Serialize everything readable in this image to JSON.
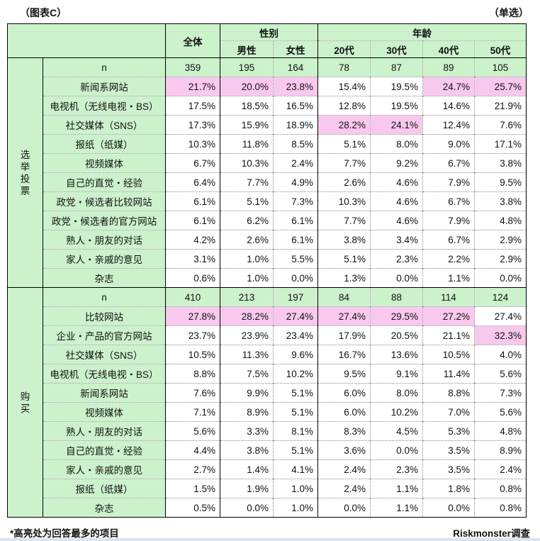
{
  "page": {
    "title_left": "（图表C）",
    "title_right": "（单选）",
    "footnote": "*高亮处为回答最多的项目",
    "source": "Riskmonster调查"
  },
  "colors": {
    "header_green": "#ccf2cc",
    "highlight_pink": "#f9c8ee"
  },
  "table": {
    "header": {
      "overall": "全体",
      "gender_group": "性别",
      "gender_cols": [
        "男性",
        "女性"
      ],
      "age_group": "年龄",
      "age_cols": [
        "20代",
        "30代",
        "40代",
        "50代"
      ]
    },
    "sections": [
      {
        "group": "选举投票",
        "n_label": "n",
        "n_values": [
          "359",
          "195",
          "164",
          "78",
          "87",
          "89",
          "105"
        ],
        "rows": [
          {
            "label": "新闻系网站",
            "values": [
              "21.7%",
              "20.0%",
              "23.8%",
              "15.4%",
              "19.5%",
              "24.7%",
              "25.7%"
            ],
            "highlight": [
              0,
              1,
              2,
              5,
              6
            ]
          },
          {
            "label": "电视机（无线电视・BS）",
            "values": [
              "17.5%",
              "18.5%",
              "16.5%",
              "12.8%",
              "19.5%",
              "14.6%",
              "21.9%"
            ],
            "highlight": []
          },
          {
            "label": "社交媒体（SNS）",
            "values": [
              "17.3%",
              "15.9%",
              "18.9%",
              "28.2%",
              "24.1%",
              "12.4%",
              "7.6%"
            ],
            "highlight": [
              3,
              4
            ]
          },
          {
            "label": "报纸（纸媒）",
            "values": [
              "10.3%",
              "11.8%",
              "8.5%",
              "5.1%",
              "8.0%",
              "9.0%",
              "17.1%"
            ],
            "highlight": []
          },
          {
            "label": "视频媒体",
            "values": [
              "6.7%",
              "10.3%",
              "2.4%",
              "7.7%",
              "9.2%",
              "6.7%",
              "3.8%"
            ],
            "highlight": []
          },
          {
            "label": "自己的直觉・经验",
            "values": [
              "6.4%",
              "7.7%",
              "4.9%",
              "2.6%",
              "4.6%",
              "7.9%",
              "9.5%"
            ],
            "highlight": []
          },
          {
            "label": "政党・候选者比较网站",
            "values": [
              "6.1%",
              "5.1%",
              "7.3%",
              "10.3%",
              "4.6%",
              "6.7%",
              "3.8%"
            ],
            "highlight": []
          },
          {
            "label": "政党・候选者的官方网站",
            "values": [
              "6.1%",
              "6.2%",
              "6.1%",
              "7.7%",
              "4.6%",
              "7.9%",
              "4.8%"
            ],
            "highlight": []
          },
          {
            "label": "熟人・朋友的对话",
            "values": [
              "4.2%",
              "2.6%",
              "6.1%",
              "3.8%",
              "3.4%",
              "6.7%",
              "2.9%"
            ],
            "highlight": []
          },
          {
            "label": "家人・亲戚的意见",
            "values": [
              "3.1%",
              "1.0%",
              "5.5%",
              "5.1%",
              "2.3%",
              "2.2%",
              "2.9%"
            ],
            "highlight": []
          },
          {
            "label": "杂志",
            "values": [
              "0.6%",
              "1.0%",
              "0.0%",
              "1.3%",
              "0.0%",
              "1.1%",
              "0.0%"
            ],
            "highlight": []
          }
        ]
      },
      {
        "group": "购买",
        "n_label": "n",
        "n_values": [
          "410",
          "213",
          "197",
          "84",
          "88",
          "114",
          "124"
        ],
        "rows": [
          {
            "label": "比较网站",
            "values": [
              "27.8%",
              "28.2%",
              "27.4%",
              "27.4%",
              "29.5%",
              "27.2%",
              "27.4%"
            ],
            "highlight": [
              0,
              1,
              2,
              3,
              4,
              5
            ]
          },
          {
            "label": "企业・产品的官方网站",
            "values": [
              "23.7%",
              "23.9%",
              "23.4%",
              "17.9%",
              "20.5%",
              "21.1%",
              "32.3%"
            ],
            "highlight": [
              6
            ]
          },
          {
            "label": "社交媒体（SNS）",
            "values": [
              "10.5%",
              "11.3%",
              "9.6%",
              "16.7%",
              "13.6%",
              "10.5%",
              "4.0%"
            ],
            "highlight": []
          },
          {
            "label": "电视机（无线电视・BS）",
            "values": [
              "8.8%",
              "7.5%",
              "10.2%",
              "9.5%",
              "9.1%",
              "11.4%",
              "5.6%"
            ],
            "highlight": []
          },
          {
            "label": "新闻系网站",
            "values": [
              "7.6%",
              "9.9%",
              "5.1%",
              "6.0%",
              "8.0%",
              "8.8%",
              "7.3%"
            ],
            "highlight": []
          },
          {
            "label": "视频媒体",
            "values": [
              "7.1%",
              "8.9%",
              "5.1%",
              "6.0%",
              "10.2%",
              "7.0%",
              "5.6%"
            ],
            "highlight": []
          },
          {
            "label": "熟人・朋友的对话",
            "values": [
              "5.6%",
              "3.3%",
              "8.1%",
              "8.3%",
              "4.5%",
              "5.3%",
              "4.8%"
            ],
            "highlight": []
          },
          {
            "label": "自己的直觉・经验",
            "values": [
              "4.4%",
              "3.8%",
              "5.1%",
              "3.6%",
              "0.0%",
              "3.5%",
              "8.9%"
            ],
            "highlight": []
          },
          {
            "label": "家人・亲戚的意见",
            "values": [
              "2.7%",
              "1.4%",
              "4.1%",
              "2.4%",
              "2.3%",
              "3.5%",
              "2.4%"
            ],
            "highlight": []
          },
          {
            "label": "报纸（纸媒）",
            "values": [
              "1.5%",
              "1.9%",
              "1.0%",
              "2.4%",
              "1.1%",
              "1.8%",
              "0.8%"
            ],
            "highlight": []
          },
          {
            "label": "杂志",
            "values": [
              "0.5%",
              "0.0%",
              "1.0%",
              "0.0%",
              "1.1%",
              "0.0%",
              "0.8%"
            ],
            "highlight": []
          }
        ]
      }
    ]
  }
}
